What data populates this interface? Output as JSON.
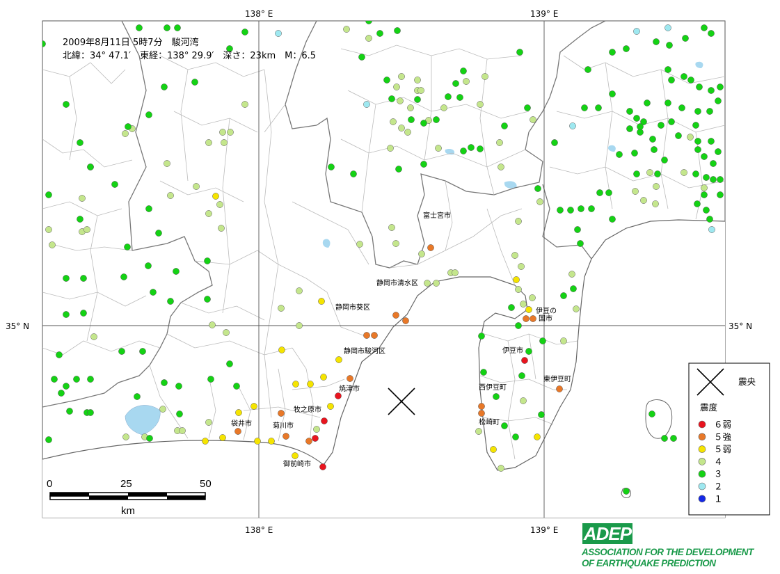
{
  "coordinates": {
    "lon_138_top": "138° E",
    "lon_139_top": "139° E",
    "lon_138_bottom": "138° E",
    "lon_139_bottom": "139° E",
    "lat_35_left": "35° N",
    "lat_35_right": "35° N"
  },
  "event_info": {
    "line1": "2009年8月11日 5時7分　駿河湾",
    "line2": "北緯：34° 47.1′　東経：138° 29.9′　深さ：23km　M：6.5"
  },
  "city_labels": {
    "fujinomiya": "富士宮市",
    "shimizu": "静岡市清水区",
    "aoi": "静岡市葵区",
    "suruga": "静岡市駿河区",
    "yaizu": "焼津市",
    "makinohara": "牧之原市",
    "kikugawa": "菊川市",
    "fukuroi": "袋井市",
    "omaezaki": "御前崎市",
    "izunokuni_1": "伊豆の",
    "izunokuni_2": "国市",
    "izu": "伊豆市",
    "higashiizu": "東伊豆町",
    "nishiizu": "西伊豆町",
    "matsuzaki": "松崎町"
  },
  "legend": {
    "epicenter_label": "震央",
    "intensity_title": "震度",
    "items": [
      {
        "label": "６弱",
        "color": "#e8141e"
      },
      {
        "label": "５強",
        "color": "#e87828"
      },
      {
        "label": "５弱",
        "color": "#f5e400"
      },
      {
        "label": "４",
        "color": "#c4e68c"
      },
      {
        "label": "３",
        "color": "#14d214"
      },
      {
        "label": "２",
        "color": "#9ee8f0"
      },
      {
        "label": "１",
        "color": "#1428e6"
      }
    ]
  },
  "scale_bar": {
    "tick_0": "0",
    "tick_25": "25",
    "tick_50": "50",
    "unit": "km"
  },
  "logo": {
    "text": "ADEP",
    "line1": "ASSOCIATION FOR THE DEVELOPMENT",
    "line2": "OF EARTHQUAKE PREDICTION"
  },
  "colors": {
    "intensity_6_lower": "#e8141e",
    "intensity_5_upper": "#e87828",
    "intensity_5_lower": "#f5e400",
    "intensity_4": "#c4e68c",
    "intensity_3": "#14d214",
    "intensity_2": "#9ee8f0",
    "intensity_1": "#1428e6",
    "water": "#a8d8f0",
    "logo_green": "#1a9a4a"
  }
}
